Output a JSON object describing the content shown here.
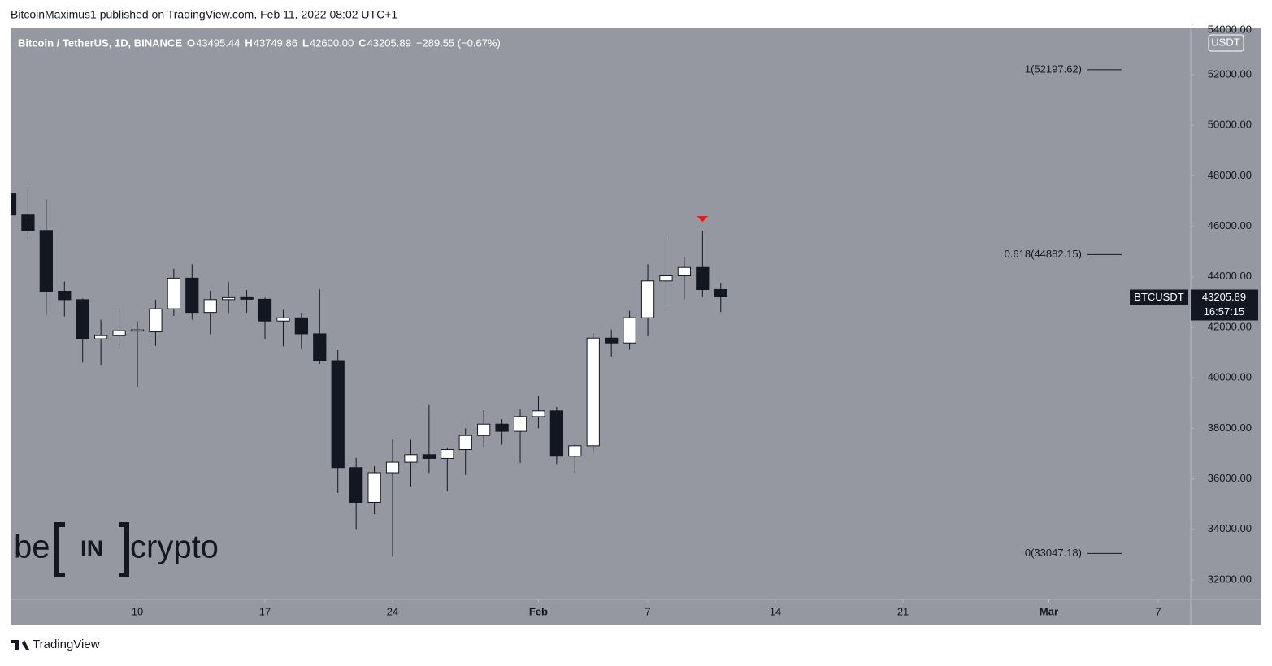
{
  "header": {
    "publisher": "BitcoinMaximus1 published on TradingView.com, Feb 11, 2022 08:02 UTC+1",
    "footer": "TradingView"
  },
  "watermark": {
    "left": "be",
    "middle": "IN",
    "right": "crypto"
  },
  "chart_data": {
    "type": "candlestick",
    "legend": {
      "symbol": "Bitcoin / TetherUS, 1D, BINANCE",
      "fields": [
        "O",
        "H",
        "L",
        "C"
      ],
      "field_values": [
        "43495.44",
        "43749.86",
        "42600.00",
        "43205.89"
      ],
      "change": "−289.55 (−0.67%)"
    },
    "x": [
      3,
      4,
      5,
      6,
      7,
      8,
      9,
      10,
      11,
      12,
      13,
      14,
      15,
      16,
      17,
      18,
      19,
      20,
      21,
      22,
      23,
      24,
      25,
      26,
      27,
      28,
      29,
      30,
      31,
      32,
      33,
      34,
      35,
      36,
      37,
      38,
      39,
      40,
      41,
      42
    ],
    "xlim": [
      3.045,
      67.78
    ],
    "xticks": [
      {
        "value": 10,
        "label": "10"
      },
      {
        "value": 17,
        "label": "17"
      },
      {
        "value": 24,
        "label": "24"
      },
      {
        "value": 32,
        "label": "Feb"
      },
      {
        "value": 38,
        "label": "7"
      },
      {
        "value": 45,
        "label": "14"
      },
      {
        "value": 52,
        "label": "21"
      },
      {
        "value": 60,
        "label": "Mar"
      },
      {
        "value": 66,
        "label": "7"
      }
    ],
    "ylim": [
      31228,
      53833
    ],
    "yticks": [
      {
        "value": 32000,
        "label": "32000.00"
      },
      {
        "value": 34000,
        "label": "34000.00"
      },
      {
        "value": 36000,
        "label": "36000.00"
      },
      {
        "value": 38000,
        "label": "38000.00"
      },
      {
        "value": 40000,
        "label": "40000.00"
      },
      {
        "value": 42000,
        "label": "42000.00"
      },
      {
        "value": 44000,
        "label": "44000.00"
      },
      {
        "value": 46000,
        "label": "46000.00"
      },
      {
        "value": 48000,
        "label": "48000.00"
      },
      {
        "value": 50000,
        "label": "50000.00"
      },
      {
        "value": 52000,
        "label": "52000.00"
      },
      {
        "value": 54000,
        "label": "54000.00"
      }
    ],
    "y_unit": "USDT",
    "grid": false,
    "up_color": "#ffffff",
    "down_color": "#131722",
    "background": "#9598a1",
    "series": [
      {
        "name": "BTCUSDT",
        "open": [
          47286,
          46446,
          45833,
          43431,
          43097,
          41547,
          41672,
          41864,
          41822,
          42735,
          43949,
          42591,
          43099,
          43177,
          43113,
          42250,
          42375,
          41744,
          40680,
          36445,
          35071,
          36244,
          36660,
          36958,
          36809,
          37160,
          37716,
          38166,
          37881,
          38466,
          38694,
          36896,
          37311,
          41574,
          41382,
          42380,
          43840,
          44042,
          44372,
          43495.44
        ],
        "high": [
          47570,
          47557,
          47070,
          43816,
          43145,
          42300,
          42786,
          42248,
          43100,
          44322,
          44500,
          43448,
          43800,
          43475,
          43176,
          42691,
          42574,
          43505,
          41100,
          36835,
          36499,
          37550,
          37545,
          38919,
          37234,
          38000,
          38720,
          38359,
          38744,
          39265,
          38855,
          37387,
          41772,
          41913,
          42656,
          44500,
          45492,
          44799,
          45821,
          43749.86
        ],
        "low": [
          45696,
          45500,
          42500,
          42430,
          40610,
          40501,
          41200,
          39650,
          41268,
          42450,
          42311,
          41725,
          42575,
          42581,
          41540,
          41250,
          41138,
          40553,
          35440,
          34008,
          34601,
          32917,
          35701,
          36234,
          35507,
          36155,
          37268,
          37351,
          36632,
          38000,
          36586,
          36250,
          37026,
          40843,
          41116,
          41645,
          42666,
          43117,
          43187,
          42600
        ],
        "close": [
          46446,
          45833,
          43431,
          43097,
          41547,
          41672,
          41864,
          41900,
          42735,
          43949,
          42591,
          43099,
          43177,
          43113,
          42250,
          42375,
          41744,
          40680,
          36445,
          35071,
          36244,
          36660,
          36958,
          36809,
          37160,
          37716,
          38166,
          37881,
          38466,
          38694,
          36896,
          37311,
          41574,
          41382,
          42380,
          43840,
          44042,
          44372,
          43495,
          43205.89
        ]
      }
    ],
    "countdown": "16:57:15",
    "fib_levels": [
      {
        "label": "1(52197.62)",
        "value": 52197.62
      },
      {
        "label": "0.618(44882.15)",
        "value": 44882.15
      },
      {
        "label": "0(33047.18)",
        "value": 33047.18
      }
    ]
  }
}
